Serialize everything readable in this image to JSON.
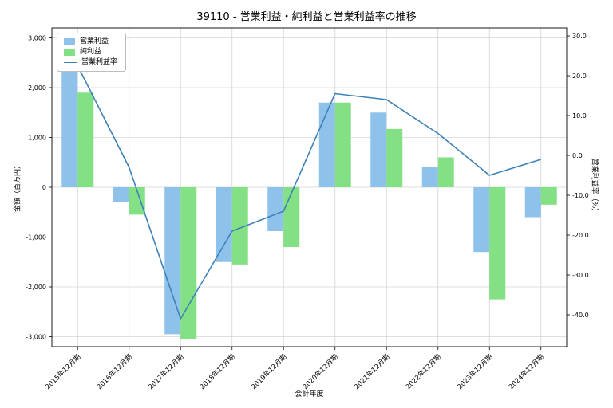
{
  "title": "39110 - 営業利益・純利益と営業利益率の推移",
  "chart_data": {
    "type": "bar",
    "subtype": "grouped-bars-with-line",
    "categories": [
      "2015年12月期",
      "2016年12月期",
      "2017年12月期",
      "2018年12月期",
      "2019年12月期",
      "2020年12月期",
      "2021年12月期",
      "2022年12月期",
      "2023年12月期",
      "2024年12月期"
    ],
    "series": [
      {
        "name": "営業利益",
        "type": "bar",
        "axis": "left",
        "color": "#8fc2eb",
        "values": [
          2500,
          -300,
          -2950,
          -1500,
          -880,
          1700,
          1500,
          400,
          -1300,
          -600
        ]
      },
      {
        "name": "純利益",
        "type": "bar",
        "axis": "left",
        "color": "#84e084",
        "values": [
          1900,
          -550,
          -3050,
          -1550,
          -1200,
          1700,
          1170,
          600,
          -2250,
          -350
        ]
      },
      {
        "name": "営業利益率",
        "type": "line",
        "axis": "right",
        "color": "#3d82b8",
        "values": [
          22.5,
          -3,
          -41,
          -19,
          -14,
          15.5,
          14,
          5.5,
          -5,
          -1
        ]
      }
    ],
    "xlabel": "会計年度",
    "ylabel_left": "金額（百万円）",
    "ylabel_right": "営業利益率（%）",
    "ylim_left": [
      -3200,
      3200
    ],
    "yticks_left": [
      3000,
      2000,
      1000,
      0,
      -1000,
      -2000,
      -3000
    ],
    "ylim_right": [
      -48,
      32
    ],
    "yticks_right": [
      30,
      20,
      10,
      0,
      -10,
      -20,
      -30,
      -40
    ],
    "grid": true,
    "grid_color": "#d4d4d4",
    "axis_color": "#000000",
    "legend_position": "top-left"
  }
}
